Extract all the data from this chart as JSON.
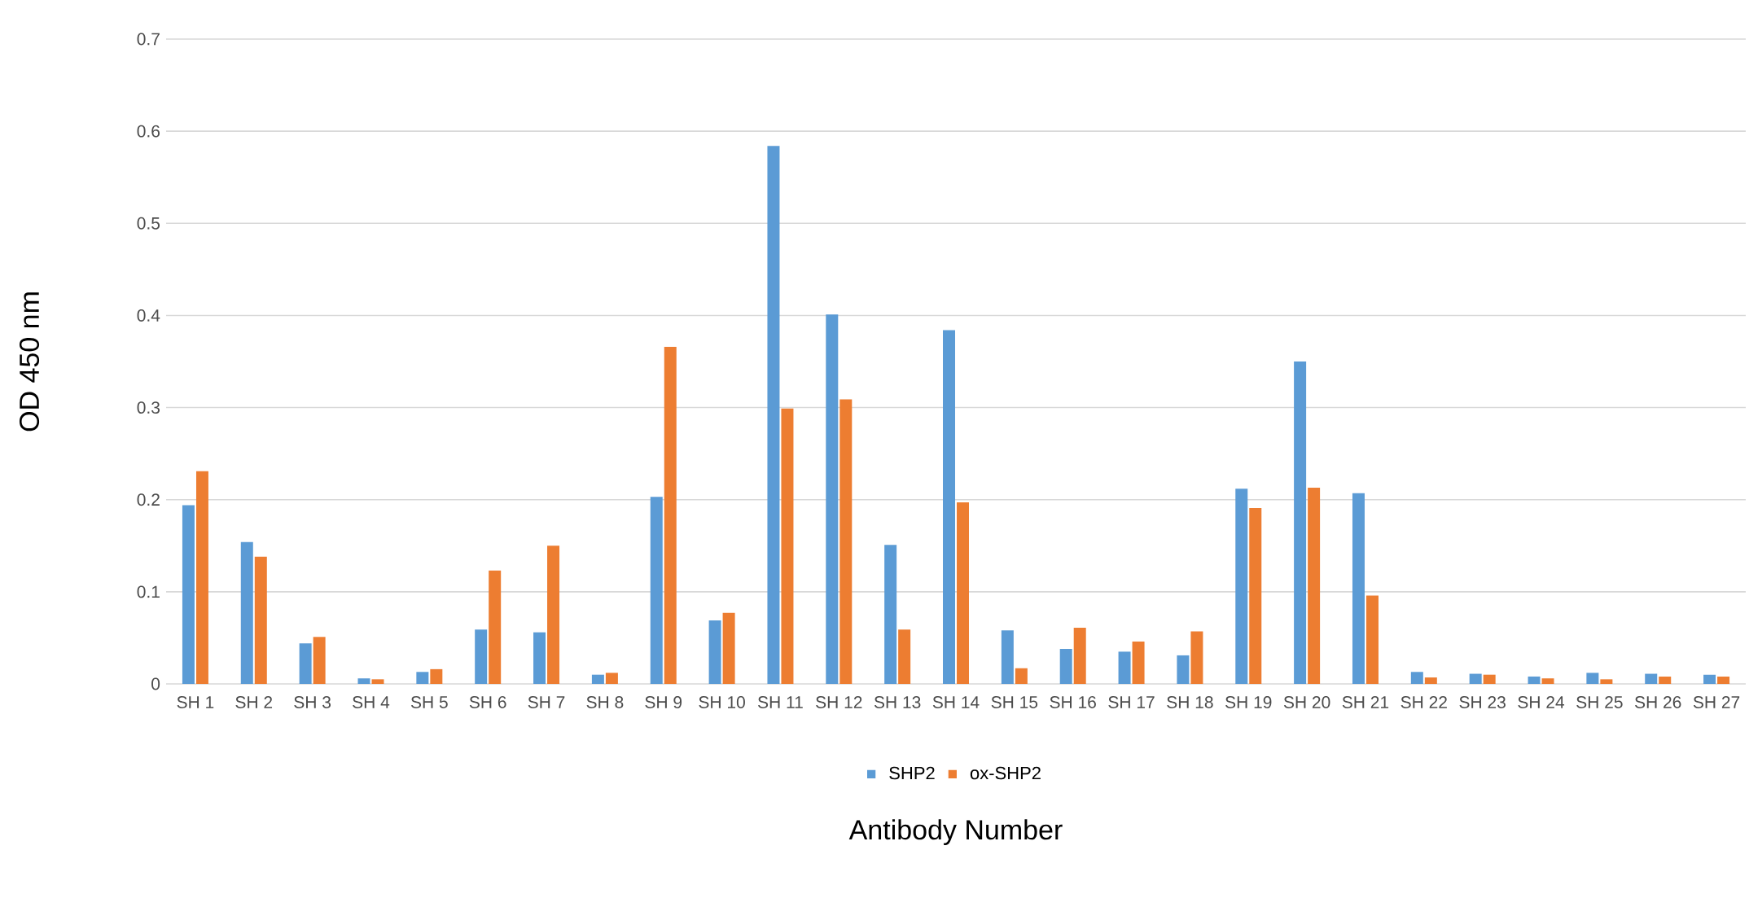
{
  "chart_data": {
    "type": "bar",
    "xlabel": "Antibody Number",
    "ylabel": "OD 450 nm",
    "categories": [
      "SH 1",
      "SH 2",
      "SH 3",
      "SH 4",
      "SH 5",
      "SH 6",
      "SH 7",
      "SH 8",
      "SH 9",
      "SH 10",
      "SH 11",
      "SH 12",
      "SH 13",
      "SH 14",
      "SH 15",
      "SH 16",
      "SH 17",
      "SH 18",
      "SH 19",
      "SH 20",
      "SH 21",
      "SH 22",
      "SH 23",
      "SH 24",
      "SH 25",
      "SH 26",
      "SH 27"
    ],
    "series": [
      {
        "name": "SHP2",
        "color": "#5b9bd5",
        "values": [
          0.194,
          0.154,
          0.044,
          0.006,
          0.013,
          0.059,
          0.056,
          0.01,
          0.203,
          0.069,
          0.584,
          0.401,
          0.151,
          0.384,
          0.058,
          0.038,
          0.035,
          0.031,
          0.212,
          0.35,
          0.207,
          0.013,
          0.011,
          0.008,
          0.012,
          0.011,
          0.01
        ]
      },
      {
        "name": "ox-SHP2",
        "color": "#ed7d31",
        "values": [
          0.231,
          0.138,
          0.051,
          0.005,
          0.016,
          0.123,
          0.15,
          0.012,
          0.366,
          0.077,
          0.299,
          0.309,
          0.059,
          0.197,
          0.017,
          0.061,
          0.046,
          0.057,
          0.191,
          0.213,
          0.096,
          0.007,
          0.01,
          0.006,
          0.005,
          0.008,
          0.008
        ]
      }
    ],
    "ylim": [
      0,
      0.7
    ],
    "yticks": [
      0,
      0.1,
      0.2,
      0.3,
      0.4,
      0.5,
      0.6,
      0.7
    ],
    "grid": "y",
    "legend": "bottom"
  }
}
